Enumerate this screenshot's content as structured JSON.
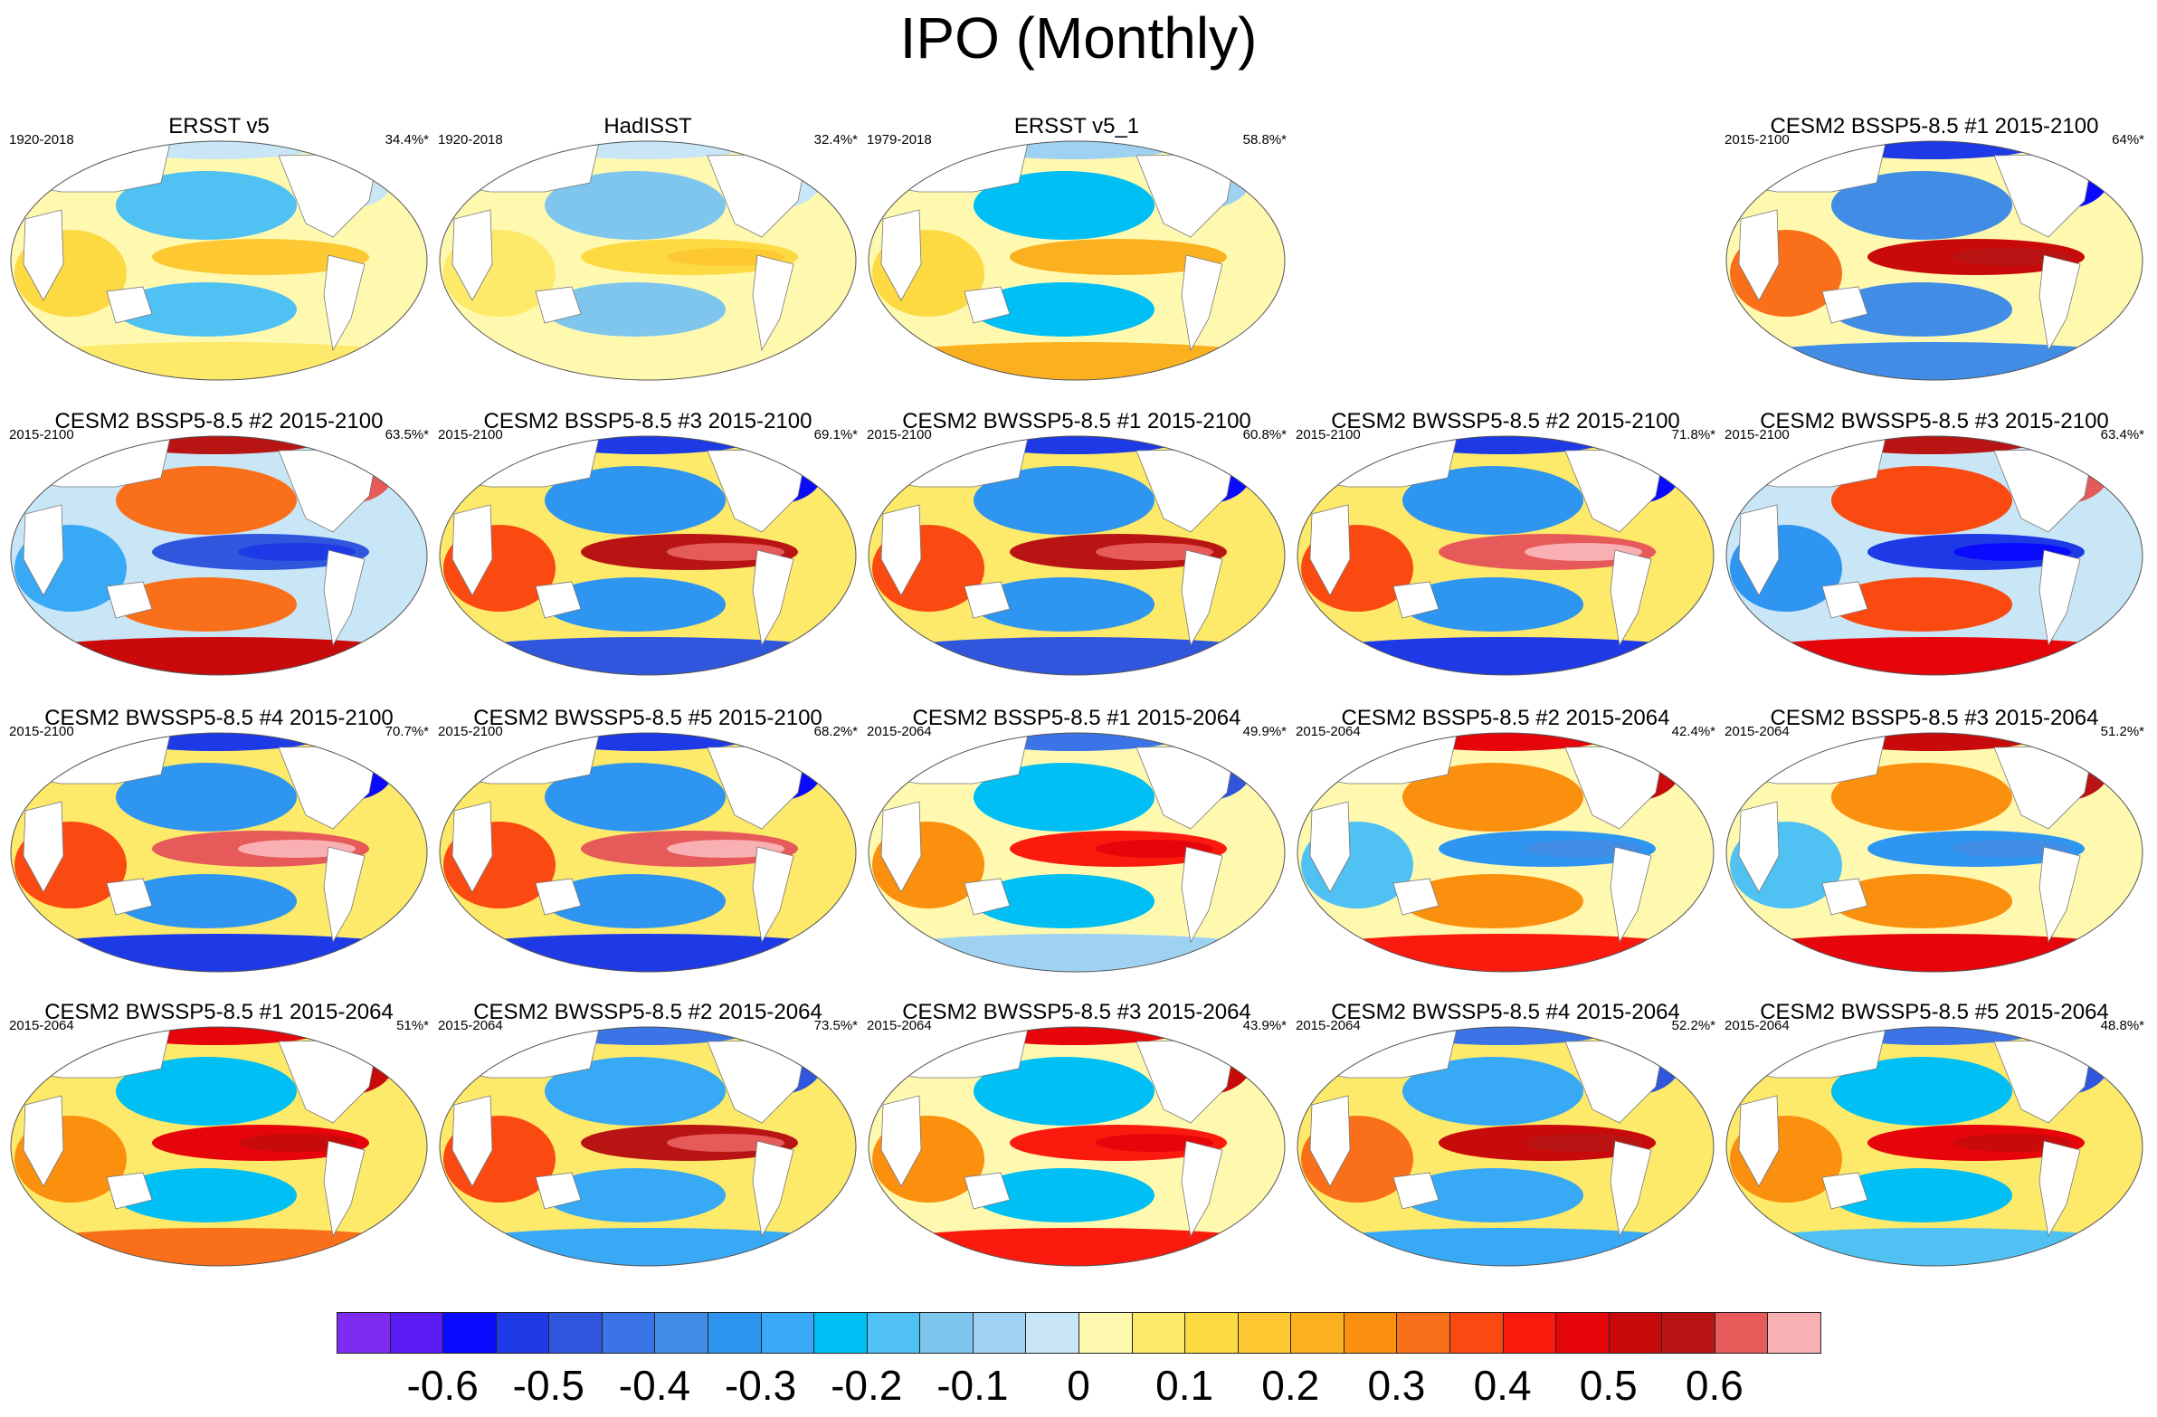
{
  "title": "IPO (Monthly)",
  "colorbar": {
    "colors": [
      "#7f2cf0",
      "#5a1bf5",
      "#0a0aff",
      "#1e3ae6",
      "#2f56dc",
      "#3a74e6",
      "#418de6",
      "#2e95f0",
      "#38a9f5",
      "#00bff5",
      "#4fc1f2",
      "#7ec6ee",
      "#9fd2f2",
      "#c8e6f6",
      "#fff9b0",
      "#fde96a",
      "#fdd942",
      "#fdc831",
      "#fbb11f",
      "#fb8f0e",
      "#fa6f1a",
      "#fa4a12",
      "#fa1b0e",
      "#e6050a",
      "#c80a0a",
      "#b81414",
      "#e65a5a",
      "#f9b0b2"
    ],
    "labels": [
      "-0.6",
      "-0.5",
      "-0.4",
      "-0.3",
      "-0.2",
      "-0.1",
      "0",
      "0.1",
      "0.2",
      "0.3",
      "0.4",
      "0.5",
      "0.6"
    ],
    "label_values": [
      -0.6,
      -0.5,
      -0.4,
      -0.3,
      -0.2,
      -0.1,
      0,
      0.1,
      0.2,
      0.3,
      0.4,
      0.5,
      0.6
    ]
  },
  "panels": [
    {
      "title": "ERSST v5",
      "period": "1920-2018",
      "pct": "34.4%*"
    },
    {
      "title": "HadISST",
      "period": "1920-2018",
      "pct": "32.4%*"
    },
    {
      "title": "ERSST v5_1",
      "period": "1979-2018",
      "pct": "58.8%*"
    },
    {
      "title": "CESM2 BSSP5-8.5 #1 2015-2100",
      "period": "2015-2100",
      "pct": "64%*"
    },
    {
      "title": "CESM2 BSSP5-8.5 #2 2015-2100",
      "period": "2015-2100",
      "pct": "63.5%*"
    },
    {
      "title": "CESM2 BSSP5-8.5 #3 2015-2100",
      "period": "2015-2100",
      "pct": "69.1%*"
    },
    {
      "title": "CESM2 BWSSP5-8.5 #1 2015-2100",
      "period": "2015-2100",
      "pct": "60.8%*"
    },
    {
      "title": "CESM2 BWSSP5-8.5 #2 2015-2100",
      "period": "2015-2100",
      "pct": "71.8%*"
    },
    {
      "title": "CESM2 BWSSP5-8.5 #3 2015-2100",
      "period": "2015-2100",
      "pct": "63.4%*"
    },
    {
      "title": "CESM2 BWSSP5-8.5 #4 2015-2100",
      "period": "2015-2100",
      "pct": "70.7%*"
    },
    {
      "title": "CESM2 BWSSP5-8.5 #5 2015-2100",
      "period": "2015-2100",
      "pct": "68.2%*"
    },
    {
      "title": "CESM2 BSSP5-8.5 #1 2015-2064",
      "period": "2015-2064",
      "pct": "49.9%*"
    },
    {
      "title": "CESM2 BSSP5-8.5 #2 2015-2064",
      "period": "2015-2064",
      "pct": "42.4%*"
    },
    {
      "title": "CESM2 BSSP5-8.5 #3 2015-2064",
      "period": "2015-2064",
      "pct": "51.2%*"
    },
    {
      "title": "CESM2 BWSSP5-8.5 #1 2015-2064",
      "period": "2015-2064",
      "pct": "51%*"
    },
    {
      "title": "CESM2 BWSSP5-8.5 #2 2015-2064",
      "period": "2015-2064",
      "pct": "73.5%*"
    },
    {
      "title": "CESM2 BWSSP5-8.5 #3 2015-2064",
      "period": "2015-2064",
      "pct": "43.9%*"
    },
    {
      "title": "CESM2 BWSSP5-8.5 #4 2015-2064",
      "period": "2015-2064",
      "pct": "52.2%*"
    },
    {
      "title": "CESM2 BWSSP5-8.5 #5 2015-2064",
      "period": "2015-2064",
      "pct": "48.8%*"
    }
  ],
  "chart_data": {
    "type": "heatmap",
    "title": "IPO (Monthly)",
    "variable": "IPO",
    "colorbar_range": [
      -0.6,
      0.6
    ],
    "panels": [
      {
        "title": "ERSST v5",
        "period": "1920-2018",
        "pct": "34.4%*",
        "tropical_pacific": 0.15,
        "north_pacific": -0.2,
        "southern_ocean": 0.05,
        "north_atlantic": -0.05
      },
      {
        "title": "HadISST",
        "period": "1920-2018",
        "pct": "32.4%*",
        "tropical_pacific": 0.12,
        "north_pacific": -0.15,
        "southern_ocean": 0.02,
        "north_atlantic": -0.05
      },
      {
        "title": "ERSST v5_1",
        "period": "1979-2018",
        "pct": "58.8%*",
        "tropical_pacific": 0.2,
        "north_pacific": -0.25,
        "southern_ocean": 0.2,
        "north_atlantic": -0.1
      },
      {
        "title": "CESM2 BSSP5-8.5 #1 2015-2100",
        "period": "2015-2100",
        "pct": "64%*",
        "tropical_pacific": 0.5,
        "north_pacific": -0.4,
        "southern_ocean": -0.4,
        "north_atlantic": -0.6
      },
      {
        "title": "CESM2 BSSP5-8.5 #2 2015-2100",
        "period": "2015-2100",
        "pct": "63.5%*",
        "tropical_pacific": -0.5,
        "north_pacific": 0.3,
        "southern_ocean": 0.5,
        "north_atlantic": 0.6
      },
      {
        "title": "CESM2 BSSP5-8.5 #3 2015-2100",
        "period": "2015-2100",
        "pct": "69.1%*",
        "tropical_pacific": 0.55,
        "north_pacific": -0.35,
        "southern_ocean": -0.5,
        "north_atlantic": -0.6
      },
      {
        "title": "CESM2 BWSSP5-8.5 #1 2015-2100",
        "period": "2015-2100",
        "pct": "60.8%*",
        "tropical_pacific": 0.55,
        "north_pacific": -0.35,
        "southern_ocean": -0.5,
        "north_atlantic": -0.6
      },
      {
        "title": "CESM2 BWSSP5-8.5 #2 2015-2100",
        "period": "2015-2100",
        "pct": "71.8%*",
        "tropical_pacific": 0.6,
        "north_pacific": -0.35,
        "southern_ocean": -0.55,
        "north_atlantic": -0.6
      },
      {
        "title": "CESM2 BWSSP5-8.5 #3 2015-2100",
        "period": "2015-2100",
        "pct": "63.4%*",
        "tropical_pacific": -0.55,
        "north_pacific": 0.35,
        "southern_ocean": 0.45,
        "north_atlantic": 0.6
      },
      {
        "title": "CESM2 BWSSP5-8.5 #4 2015-2100",
        "period": "2015-2100",
        "pct": "70.7%*",
        "tropical_pacific": 0.6,
        "north_pacific": -0.35,
        "southern_ocean": -0.55,
        "north_atlantic": -0.6
      },
      {
        "title": "CESM2 BWSSP5-8.5 #5 2015-2100",
        "period": "2015-2100",
        "pct": "68.2%*",
        "tropical_pacific": 0.6,
        "north_pacific": -0.35,
        "southern_ocean": -0.55,
        "north_atlantic": -0.6
      },
      {
        "title": "CESM2 BSSP5-8.5 #1 2015-2064",
        "period": "2015-2064",
        "pct": "49.9%*",
        "tropical_pacific": 0.4,
        "north_pacific": -0.25,
        "southern_ocean": -0.1,
        "north_atlantic": -0.5
      },
      {
        "title": "CESM2 BSSP5-8.5 #2 2015-2064",
        "period": "2015-2064",
        "pct": "42.4%*",
        "tropical_pacific": -0.35,
        "north_pacific": 0.25,
        "southern_ocean": 0.4,
        "north_atlantic": 0.5
      },
      {
        "title": "CESM2 BSSP5-8.5 #3 2015-2064",
        "period": "2015-2064",
        "pct": "51.2%*",
        "tropical_pacific": -0.35,
        "north_pacific": 0.25,
        "southern_ocean": 0.45,
        "north_atlantic": 0.55
      },
      {
        "title": "CESM2 BWSSP5-8.5 #1 2015-2064",
        "period": "2015-2064",
        "pct": "51%*",
        "tropical_pacific": 0.45,
        "north_pacific": -0.25,
        "southern_ocean": 0.3,
        "north_atlantic": 0.5
      },
      {
        "title": "CESM2 BWSSP5-8.5 #2 2015-2064",
        "period": "2015-2064",
        "pct": "73.5%*",
        "tropical_pacific": 0.55,
        "north_pacific": -0.3,
        "southern_ocean": -0.3,
        "north_atlantic": -0.5
      },
      {
        "title": "CESM2 BWSSP5-8.5 #3 2015-2064",
        "period": "2015-2064",
        "pct": "43.9%*",
        "tropical_pacific": 0.4,
        "north_pacific": -0.25,
        "southern_ocean": 0.4,
        "north_atlantic": 0.5
      },
      {
        "title": "CESM2 BWSSP5-8.5 #4 2015-2064",
        "period": "2015-2064",
        "pct": "52.2%*",
        "tropical_pacific": 0.5,
        "north_pacific": -0.3,
        "southern_ocean": -0.3,
        "north_atlantic": -0.5
      },
      {
        "title": "CESM2 BWSSP5-8.5 #5 2015-2064",
        "period": "2015-2064",
        "pct": "48.8%*",
        "tropical_pacific": 0.45,
        "north_pacific": -0.25,
        "southern_ocean": -0.2,
        "north_atlantic": -0.5
      }
    ]
  }
}
